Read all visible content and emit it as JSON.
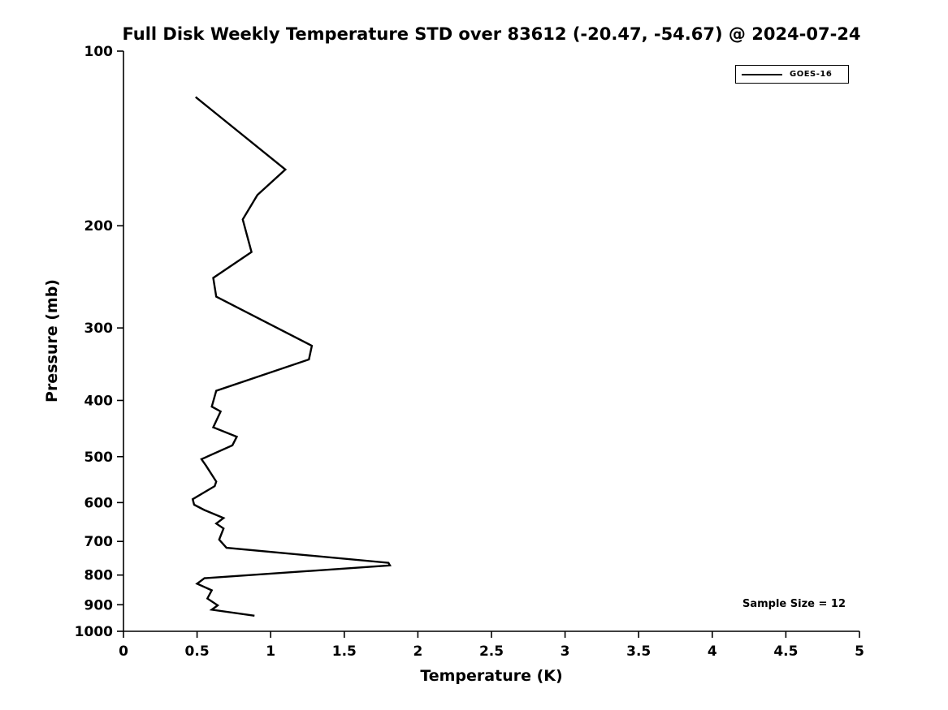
{
  "title": "Full Disk Weekly Temperature STD over 83612 (-20.47, -54.67) @ 2024-07-24",
  "legend": {
    "label": "GOES-16"
  },
  "annotation": {
    "sample_size_text": "Sample Size = 12"
  },
  "chart_data": {
    "type": "line",
    "title": "Full Disk Weekly Temperature STD over 83612 (-20.47, -54.67) @ 2024-07-24",
    "xlabel": "Temperature (K)",
    "ylabel": "Pressure (mb)",
    "xlim": [
      0,
      5
    ],
    "ylim": [
      100,
      1000
    ],
    "yscale": "log",
    "y_inverted": true,
    "grid": false,
    "legend_position": "top-right",
    "x_ticks": [
      0,
      0.5,
      1,
      1.5,
      2,
      2.5,
      3,
      3.5,
      4,
      4.5,
      5
    ],
    "x_tick_labels": [
      "0",
      "0.5",
      "1",
      "1.5",
      "2",
      "2.5",
      "3",
      "3.5",
      "4",
      "4.5",
      "5"
    ],
    "y_ticks": [
      100,
      200,
      300,
      400,
      500,
      600,
      700,
      800,
      900,
      1000
    ],
    "y_tick_labels": [
      "100",
      "200",
      "300",
      "400",
      "500",
      "600",
      "700",
      "800",
      "900",
      "1000"
    ],
    "sample_size": 12,
    "line_color": "#000000",
    "series": [
      {
        "name": "GOES-16",
        "color": "#000000",
        "points_temperature_pressure": [
          [
            0.49,
            120
          ],
          [
            1.1,
            160
          ],
          [
            0.91,
            177
          ],
          [
            0.81,
            195
          ],
          [
            0.87,
            222
          ],
          [
            0.61,
            246
          ],
          [
            0.63,
            265
          ],
          [
            1.28,
            322
          ],
          [
            1.26,
            340
          ],
          [
            0.63,
            385
          ],
          [
            0.6,
            410
          ],
          [
            0.66,
            418
          ],
          [
            0.61,
            445
          ],
          [
            0.77,
            462
          ],
          [
            0.74,
            478
          ],
          [
            0.53,
            505
          ],
          [
            0.56,
            518
          ],
          [
            0.63,
            552
          ],
          [
            0.62,
            562
          ],
          [
            0.47,
            592
          ],
          [
            0.48,
            605
          ],
          [
            0.55,
            618
          ],
          [
            0.68,
            638
          ],
          [
            0.63,
            652
          ],
          [
            0.68,
            665
          ],
          [
            0.65,
            695
          ],
          [
            0.7,
            718
          ],
          [
            1.8,
            762
          ],
          [
            1.81,
            770
          ],
          [
            0.55,
            810
          ],
          [
            0.5,
            828
          ],
          [
            0.6,
            850
          ],
          [
            0.57,
            878
          ],
          [
            0.64,
            902
          ],
          [
            0.6,
            918
          ],
          [
            0.89,
            940
          ]
        ]
      }
    ]
  }
}
